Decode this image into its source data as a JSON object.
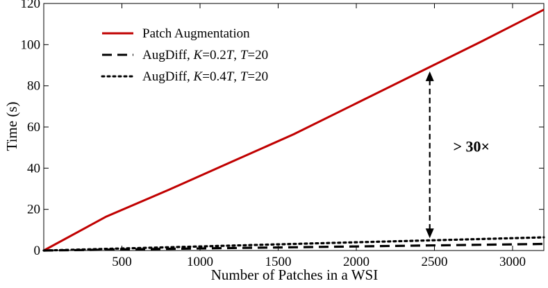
{
  "chart_data": {
    "type": "line",
    "xlabel": "Number of Patches in a WSI",
    "ylabel": "Time (s)",
    "xlim": [
      0,
      3200
    ],
    "ylim": [
      0,
      120
    ],
    "xticks": [
      500,
      1000,
      1500,
      2000,
      2500,
      3000
    ],
    "yticks": [
      0,
      20,
      40,
      60,
      80,
      100,
      120
    ],
    "grid": false,
    "legend_position": "top-left",
    "series": [
      {
        "name": "Patch Augmentation",
        "legend_parts": [
          {
            "text": "Patch Augmentation",
            "italic": false
          }
        ],
        "color": "#c00000",
        "style": "solid",
        "x": [
          0,
          400,
          800,
          1200,
          1600,
          2000,
          2400,
          2800,
          3200
        ],
        "y": [
          0,
          16.5,
          29.5,
          43,
          56.5,
          71.5,
          86.5,
          101.5,
          117
        ]
      },
      {
        "name": "AugDiff, K=0.2T, T=20",
        "legend_parts": [
          {
            "text": "AugDiff, ",
            "italic": false
          },
          {
            "text": "K",
            "italic": true
          },
          {
            "text": "=0.2",
            "italic": false
          },
          {
            "text": "T",
            "italic": true
          },
          {
            "text": ", ",
            "italic": false
          },
          {
            "text": "T",
            "italic": true
          },
          {
            "text": "=20",
            "italic": false
          }
        ],
        "color": "#000000",
        "style": "dashed",
        "x": [
          0,
          400,
          800,
          1200,
          1600,
          2000,
          2400,
          2800,
          3200
        ],
        "y": [
          0,
          0.4,
          0.8,
          1.2,
          1.6,
          2.0,
          2.4,
          2.8,
          3.2
        ]
      },
      {
        "name": "AugDiff, K=0.4T, T=20",
        "legend_parts": [
          {
            "text": "AugDiff, ",
            "italic": false
          },
          {
            "text": "K",
            "italic": true
          },
          {
            "text": "=0.4",
            "italic": false
          },
          {
            "text": "T",
            "italic": true
          },
          {
            "text": ", ",
            "italic": false
          },
          {
            "text": "T",
            "italic": true
          },
          {
            "text": "=20",
            "italic": false
          }
        ],
        "color": "#000000",
        "style": "dotted",
        "x": [
          0,
          400,
          800,
          1200,
          1600,
          2000,
          2400,
          2800,
          3200
        ],
        "y": [
          0,
          0.8,
          1.6,
          2.4,
          3.2,
          4.0,
          4.8,
          5.6,
          6.4
        ]
      }
    ],
    "annotations": [
      {
        "type": "double-arrow",
        "x": 2470,
        "y_from": 87,
        "y_to": 6,
        "style": "dashed"
      },
      {
        "type": "text",
        "text": "> 30×",
        "x": 2620,
        "y": 48
      }
    ]
  }
}
